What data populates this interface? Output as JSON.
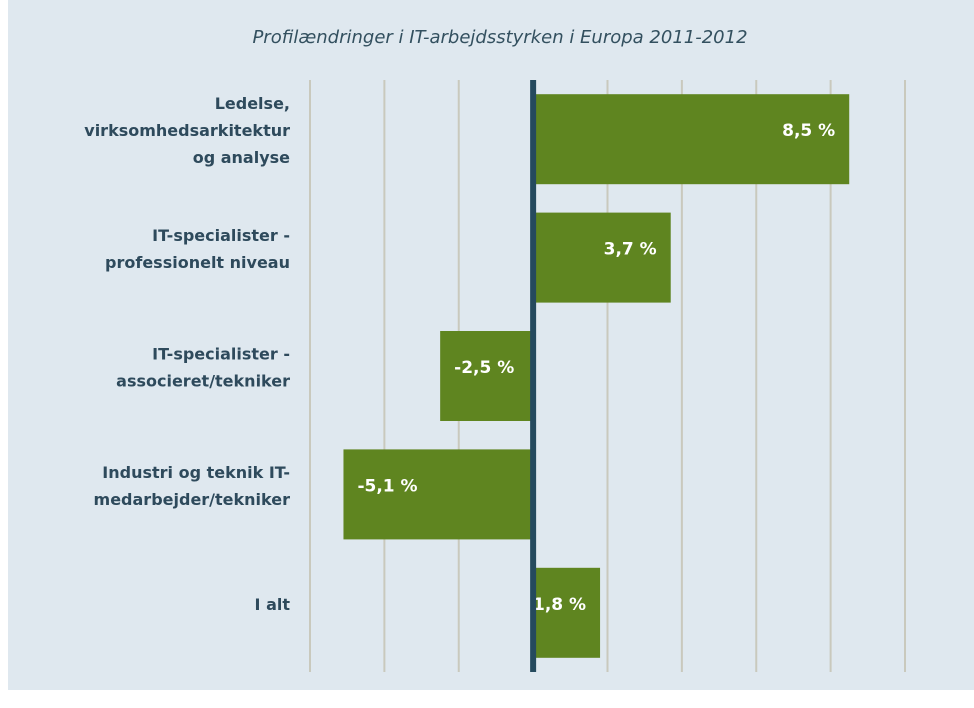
{
  "chart_data": {
    "type": "barh",
    "title": "Profilændringer i IT-arbejdsstyrken i Europa 2011-2012",
    "categories": [
      "Ledelse,\nvirksomhedsarkitektur\nog analyse",
      "IT-specialister -\nprofessionelt niveau",
      "IT-specialister -\nassocieret/tekniker",
      "Industri og teknik IT-\nmedarbejder/tekniker",
      "I alt"
    ],
    "values": [
      8.5,
      3.7,
      -2.5,
      -5.1,
      1.8
    ],
    "value_labels": [
      "8,5 %",
      "3,7 %",
      "-2,5 %",
      "-5,1 %",
      "1,8 %"
    ],
    "color": "#5f8520",
    "xlim": [
      -6,
      10
    ],
    "xticks": [
      -6,
      -4,
      -2,
      0,
      2,
      4,
      6,
      8,
      10
    ],
    "grid": true
  }
}
